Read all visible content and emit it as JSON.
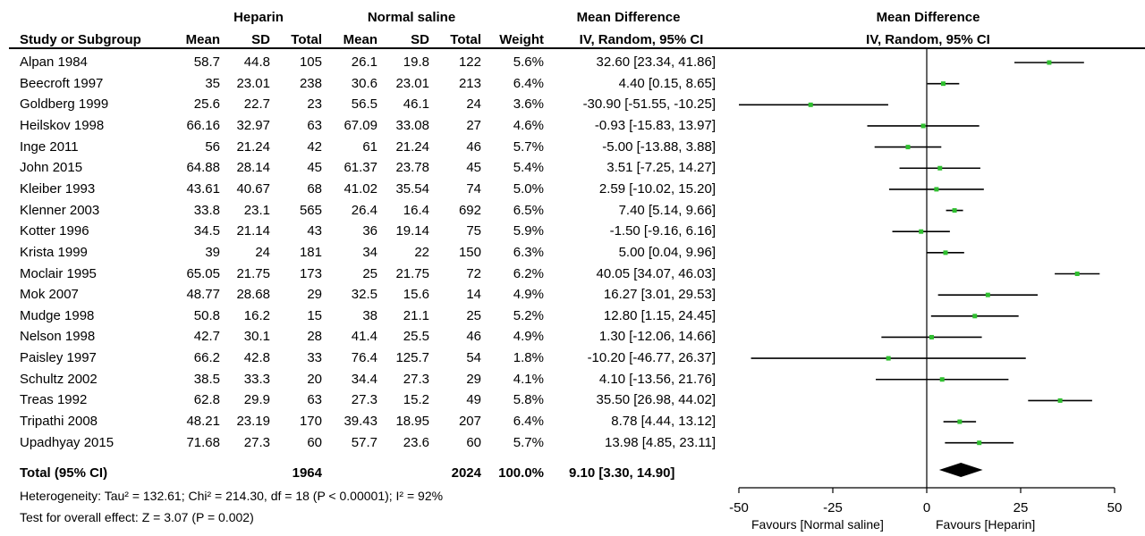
{
  "headers": {
    "group1": "Heparin",
    "group2": "Normal saline",
    "effect_left": "Mean Difference",
    "effect_right": "Mean Difference",
    "study": "Study or Subgroup",
    "mean1": "Mean",
    "sd1": "SD",
    "total1": "Total",
    "mean2": "Mean",
    "sd2": "SD",
    "total2": "Total",
    "weight": "Weight",
    "ci_left": "IV, Random, 95% CI",
    "ci_right": "IV, Random, 95% CI"
  },
  "studies": [
    {
      "study": "Alpan 1984",
      "m1": "58.7",
      "sd1": "44.8",
      "n1": "105",
      "m2": "26.1",
      "sd2": "19.8",
      "n2": "122",
      "w": "5.6%",
      "ci": "32.60 [23.34, 41.86]"
    },
    {
      "study": "Beecroft 1997",
      "m1": "35",
      "sd1": "23.01",
      "n1": "238",
      "m2": "30.6",
      "sd2": "23.01",
      "n2": "213",
      "w": "6.4%",
      "ci": "4.40 [0.15, 8.65]"
    },
    {
      "study": "Goldberg 1999",
      "m1": "25.6",
      "sd1": "22.7",
      "n1": "23",
      "m2": "56.5",
      "sd2": "46.1",
      "n2": "24",
      "w": "3.6%",
      "ci": "-30.90 [-51.55, -10.25]"
    },
    {
      "study": "Heilskov 1998",
      "m1": "66.16",
      "sd1": "32.97",
      "n1": "63",
      "m2": "67.09",
      "sd2": "33.08",
      "n2": "27",
      "w": "4.6%",
      "ci": "-0.93 [-15.83, 13.97]"
    },
    {
      "study": "Inge  2011",
      "m1": "56",
      "sd1": "21.24",
      "n1": "42",
      "m2": "61",
      "sd2": "21.24",
      "n2": "46",
      "w": "5.7%",
      "ci": "-5.00 [-13.88, 3.88]"
    },
    {
      "study": "John 2015",
      "m1": "64.88",
      "sd1": "28.14",
      "n1": "45",
      "m2": "61.37",
      "sd2": "23.78",
      "n2": "45",
      "w": "5.4%",
      "ci": "3.51 [-7.25, 14.27]"
    },
    {
      "study": "Kleiber 1993",
      "m1": "43.61",
      "sd1": "40.67",
      "n1": "68",
      "m2": "41.02",
      "sd2": "35.54",
      "n2": "74",
      "w": "5.0%",
      "ci": "2.59 [-10.02, 15.20]"
    },
    {
      "study": "Klenner 2003",
      "m1": "33.8",
      "sd1": "23.1",
      "n1": "565",
      "m2": "26.4",
      "sd2": "16.4",
      "n2": "692",
      "w": "6.5%",
      "ci": "7.40 [5.14, 9.66]"
    },
    {
      "study": "Kotter  1996",
      "m1": "34.5",
      "sd1": "21.14",
      "n1": "43",
      "m2": "36",
      "sd2": "19.14",
      "n2": "75",
      "w": "5.9%",
      "ci": "-1.50 [-9.16, 6.16]"
    },
    {
      "study": "Krista 1999",
      "m1": "39",
      "sd1": "24",
      "n1": "181",
      "m2": "34",
      "sd2": "22",
      "n2": "150",
      "w": "6.3%",
      "ci": "5.00 [0.04, 9.96]"
    },
    {
      "study": "Moclair 1995",
      "m1": "65.05",
      "sd1": "21.75",
      "n1": "173",
      "m2": "25",
      "sd2": "21.75",
      "n2": "72",
      "w": "6.2%",
      "ci": "40.05 [34.07, 46.03]"
    },
    {
      "study": "Mok 2007",
      "m1": "48.77",
      "sd1": "28.68",
      "n1": "29",
      "m2": "32.5",
      "sd2": "15.6",
      "n2": "14",
      "w": "4.9%",
      "ci": "16.27 [3.01, 29.53]"
    },
    {
      "study": "Mudge 1998",
      "m1": "50.8",
      "sd1": "16.2",
      "n1": "15",
      "m2": "38",
      "sd2": "21.1",
      "n2": "25",
      "w": "5.2%",
      "ci": "12.80 [1.15, 24.45]"
    },
    {
      "study": "Nelson 1998",
      "m1": "42.7",
      "sd1": "30.1",
      "n1": "28",
      "m2": "41.4",
      "sd2": "25.5",
      "n2": "46",
      "w": "4.9%",
      "ci": "1.30 [-12.06, 14.66]"
    },
    {
      "study": "Paisley 1997",
      "m1": "66.2",
      "sd1": "42.8",
      "n1": "33",
      "m2": "76.4",
      "sd2": "125.7",
      "n2": "54",
      "w": "1.8%",
      "ci": "-10.20 [-46.77, 26.37]"
    },
    {
      "study": "Schultz  2002",
      "m1": "38.5",
      "sd1": "33.3",
      "n1": "20",
      "m2": "34.4",
      "sd2": "27.3",
      "n2": "29",
      "w": "4.1%",
      "ci": "4.10 [-13.56, 21.76]"
    },
    {
      "study": "Treas 1992",
      "m1": "62.8",
      "sd1": "29.9",
      "n1": "63",
      "m2": "27.3",
      "sd2": "15.2",
      "n2": "49",
      "w": "5.8%",
      "ci": "35.50 [26.98, 44.02]"
    },
    {
      "study": "Tripathi  2008",
      "m1": "48.21",
      "sd1": "23.19",
      "n1": "170",
      "m2": "39.43",
      "sd2": "18.95",
      "n2": "207",
      "w": "6.4%",
      "ci": "8.78 [4.44, 13.12]"
    },
    {
      "study": "Upadhyay 2015",
      "m1": "71.68",
      "sd1": "27.3",
      "n1": "60",
      "m2": "57.7",
      "sd2": "23.6",
      "n2": "60",
      "w": "5.7%",
      "ci": "13.98 [4.85, 23.11]"
    }
  ],
  "total": {
    "label": "Total (95% CI)",
    "n1": "1964",
    "n2": "2024",
    "w": "100.0%",
    "ci": "9.10 [3.30, 14.90]"
  },
  "heterogeneity": "Heterogeneity: Tau² = 132.61; Chi² = 214.30, df = 18 (P < 0.00001); I² = 92%",
  "overall_test": "Test for overall effect: Z = 3.07 (P = 0.002)",
  "axis": {
    "ticks": [
      "-50",
      "-25",
      "0",
      "25",
      "50"
    ],
    "favours_left": "Favours [Normal saline]",
    "favours_right": "Favours [Heparin]"
  },
  "colors": {
    "point": "#2fbf2f",
    "line": "#000000",
    "diamond": "#000000"
  },
  "chart_data": {
    "type": "forest",
    "xlim": [
      -50,
      50
    ],
    "x_ticks": [
      -50,
      -25,
      0,
      25,
      50
    ],
    "reference_line": 0,
    "studies": [
      {
        "study": "Alpan 1984",
        "md": 32.6,
        "lo": 23.34,
        "hi": 41.86
      },
      {
        "study": "Beecroft 1997",
        "md": 4.4,
        "lo": 0.15,
        "hi": 8.65
      },
      {
        "study": "Goldberg 1999",
        "md": -30.9,
        "lo": -51.55,
        "hi": -10.25
      },
      {
        "study": "Heilskov 1998",
        "md": -0.93,
        "lo": -15.83,
        "hi": 13.97
      },
      {
        "study": "Inge  2011",
        "md": -5.0,
        "lo": -13.88,
        "hi": 3.88
      },
      {
        "study": "John 2015",
        "md": 3.51,
        "lo": -7.25,
        "hi": 14.27
      },
      {
        "study": "Kleiber 1993",
        "md": 2.59,
        "lo": -10.02,
        "hi": 15.2
      },
      {
        "study": "Klenner 2003",
        "md": 7.4,
        "lo": 5.14,
        "hi": 9.66
      },
      {
        "study": "Kotter  1996",
        "md": -1.5,
        "lo": -9.16,
        "hi": 6.16
      },
      {
        "study": "Krista 1999",
        "md": 5.0,
        "lo": 0.04,
        "hi": 9.96
      },
      {
        "study": "Moclair 1995",
        "md": 40.05,
        "lo": 34.07,
        "hi": 46.03
      },
      {
        "study": "Mok 2007",
        "md": 16.27,
        "lo": 3.01,
        "hi": 29.53
      },
      {
        "study": "Mudge 1998",
        "md": 12.8,
        "lo": 1.15,
        "hi": 24.45
      },
      {
        "study": "Nelson 1998",
        "md": 1.3,
        "lo": -12.06,
        "hi": 14.66
      },
      {
        "study": "Paisley 1997",
        "md": -10.2,
        "lo": -46.77,
        "hi": 26.37
      },
      {
        "study": "Schultz  2002",
        "md": 4.1,
        "lo": -13.56,
        "hi": 21.76
      },
      {
        "study": "Treas 1992",
        "md": 35.5,
        "lo": 26.98,
        "hi": 44.02
      },
      {
        "study": "Tripathi  2008",
        "md": 8.78,
        "lo": 4.44,
        "hi": 13.12
      },
      {
        "study": "Upadhyay 2015",
        "md": 13.98,
        "lo": 4.85,
        "hi": 23.11
      }
    ],
    "total": {
      "md": 9.1,
      "lo": 3.3,
      "hi": 14.9
    }
  }
}
